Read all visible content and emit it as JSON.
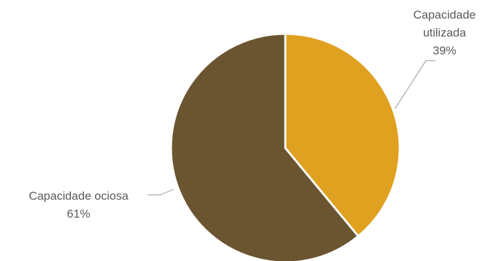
{
  "chart_data": {
    "type": "pie",
    "title": "",
    "slices": [
      {
        "label_lines": [
          "Capacidade",
          "utilizada"
        ],
        "label": "Capacidade utilizada",
        "value": 39,
        "display_value": "39%",
        "color": "#E0A020"
      },
      {
        "label_lines": [
          "Capacidade ociosa"
        ],
        "label": "Capacidade ociosa",
        "value": 61,
        "display_value": "61%",
        "color": "#6B5530"
      }
    ],
    "start_angle": "12 o'clock",
    "direction": "clockwise",
    "legend": "none",
    "data_labels": "outside with leader lines"
  }
}
